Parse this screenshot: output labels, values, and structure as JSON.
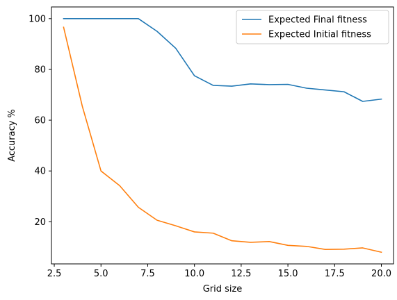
{
  "chart_data": {
    "type": "line",
    "xlabel": "Grid size",
    "ylabel": "Accuracy %",
    "xlim": [
      2.35,
      20.65
    ],
    "ylim": [
      3.4,
      104.6
    ],
    "xticks": [
      2.5,
      5.0,
      7.5,
      10.0,
      12.5,
      15.0,
      17.5,
      20.0
    ],
    "xtick_labels": [
      "2.5",
      "5.0",
      "7.5",
      "10.0",
      "12.5",
      "15.0",
      "17.5",
      "20.0"
    ],
    "yticks": [
      20,
      40,
      60,
      80,
      100
    ],
    "ytick_labels": [
      "20",
      "40",
      "60",
      "80",
      "100"
    ],
    "legend_position": "top-right",
    "grid": false,
    "x": [
      3,
      4,
      5,
      6,
      7,
      8,
      9,
      10,
      11,
      12,
      13,
      14,
      15,
      16,
      17,
      18,
      19,
      20
    ],
    "series": [
      {
        "name": "Expected Final fitness",
        "color": "#1f77b4",
        "values": [
          100,
          100,
          100,
          100,
          100,
          95.0,
          88.3,
          77.5,
          73.7,
          73.4,
          74.3,
          74.0,
          74.1,
          72.6,
          71.9,
          71.2,
          67.4,
          68.3
        ]
      },
      {
        "name": "Expected Initial fitness",
        "color": "#ff7f0e",
        "values": [
          96.6,
          65.5,
          40.0,
          34.2,
          25.7,
          20.6,
          18.4,
          16.0,
          15.5,
          12.5,
          11.9,
          12.2,
          10.7,
          10.3,
          9.1,
          9.2,
          9.7,
          8.0
        ]
      }
    ]
  }
}
